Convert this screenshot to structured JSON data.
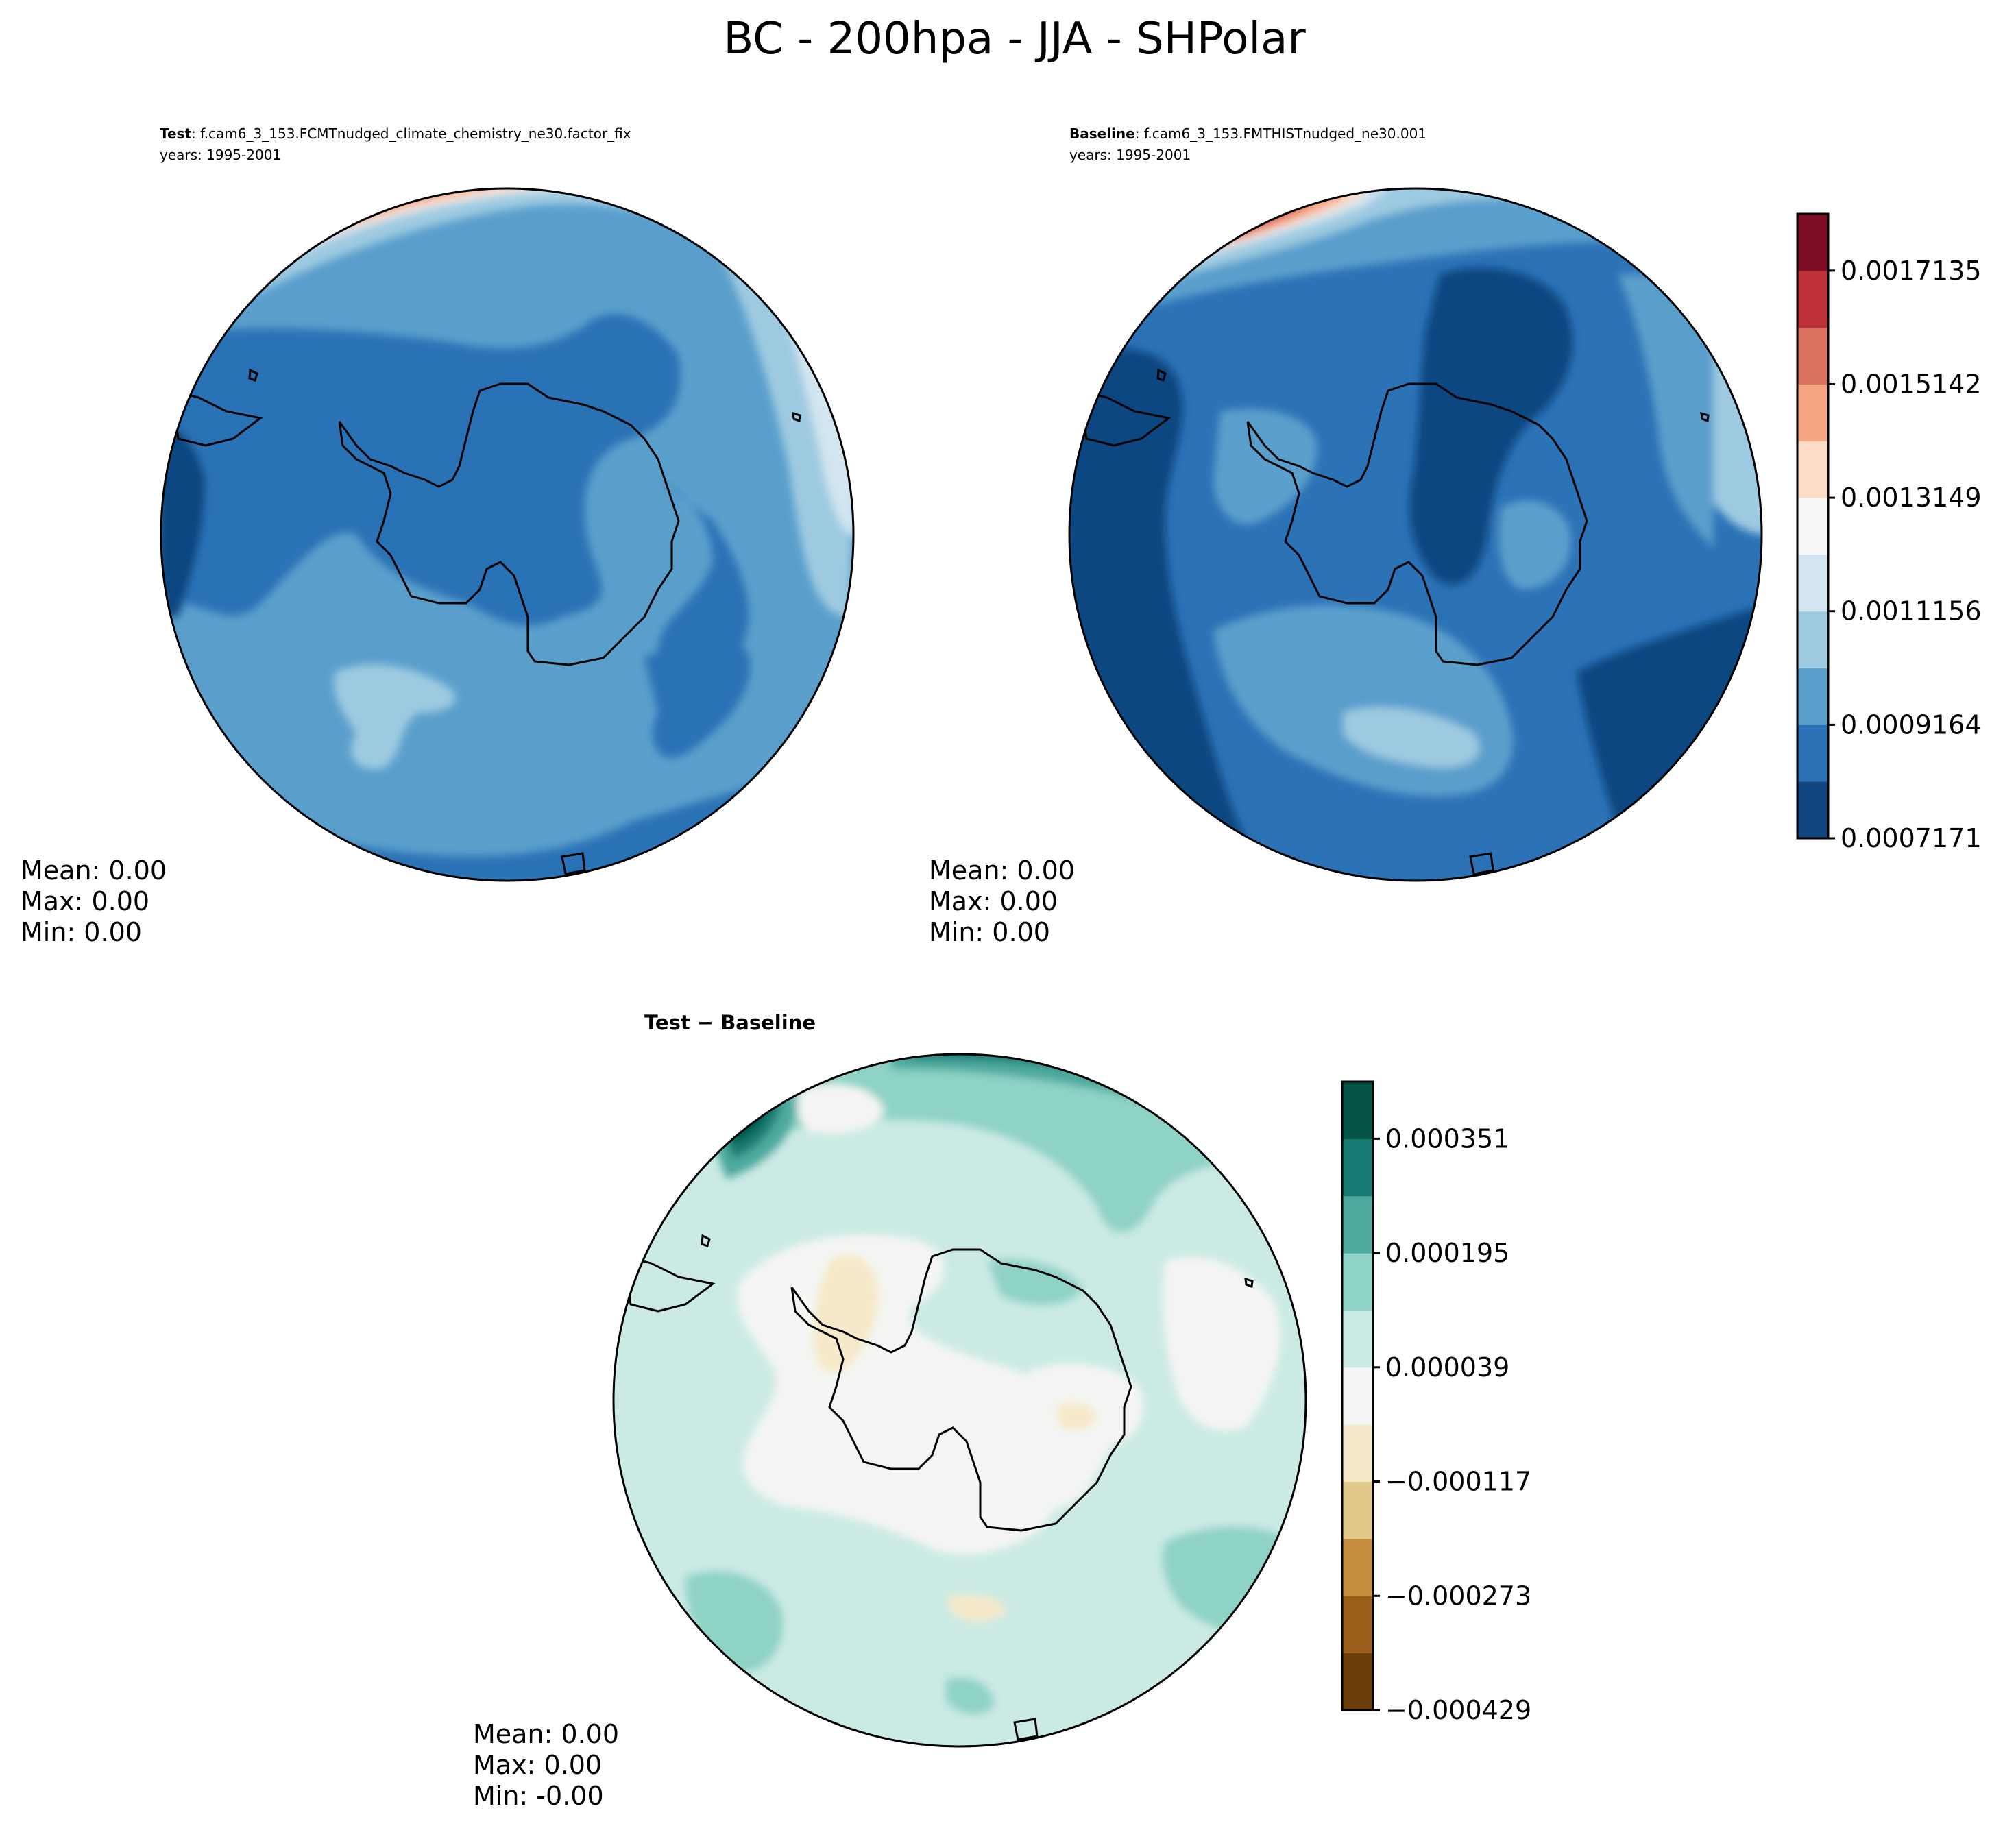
{
  "figure": {
    "title": "BC - 200hpa - JJA - SHPolar"
  },
  "chart_data": [
    {
      "type": "heatmap",
      "projection": "south-polar-stereographic",
      "panel": "test",
      "label_bold": "Test",
      "label_rest": ": f.cam6_3_153.FCMTnudged_climate_chemistry_ne30.factor_fix",
      "years": "years: 1995-2001",
      "stats": [
        "Mean:  0.00",
        "Max:  0.00",
        "Min:  0.00"
      ],
      "colormap": "RdBu_r",
      "levels_range": [
        0.0007171,
        0.0017135
      ]
    },
    {
      "type": "heatmap",
      "projection": "south-polar-stereographic",
      "panel": "baseline",
      "label_bold": "Baseline",
      "label_rest": ": f.cam6_3_153.FMTHISTnudged_ne30.001",
      "years": "years: 1995-2001",
      "stats": [
        "Mean:  0.00",
        "Max:  0.00",
        "Min:  0.00"
      ],
      "colormap": "RdBu_r",
      "colorbar": {
        "tick_labels": [
          "0.0007171",
          "0.0009164",
          "0.0011156",
          "0.0013149",
          "0.0015142",
          "0.0017135"
        ],
        "colors": [
          "#114781",
          "#2c72b6",
          "#5a9fcc",
          "#9ecae1",
          "#d2e5f0",
          "#f7f7f7",
          "#fddbc7",
          "#f5a582",
          "#dd7160",
          "#be3037",
          "#7f0d26"
        ]
      }
    },
    {
      "type": "heatmap",
      "projection": "south-polar-stereographic",
      "panel": "difference",
      "title": "Test − Baseline",
      "stats": [
        "Mean:  0.00",
        "Max:  0.00",
        "Min: -0.00"
      ],
      "colormap": "BrBG",
      "colorbar": {
        "tick_labels": [
          "−0.000429",
          "−0.000273",
          "−0.000117",
          "0.000039",
          "0.000195",
          "0.000351"
        ],
        "colors": [
          "#6b3d0a",
          "#9a5e1b",
          "#c58e3e",
          "#e2c88b",
          "#f5e9c9",
          "#f4f5f3",
          "#cbeae4",
          "#8fd2c6",
          "#4ea99e",
          "#167a72",
          "#035446"
        ]
      }
    }
  ]
}
